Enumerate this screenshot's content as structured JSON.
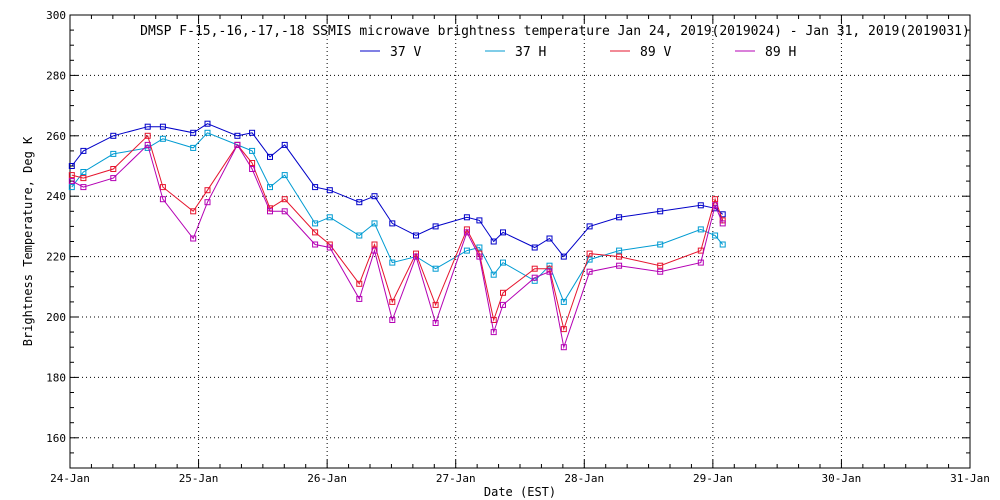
{
  "chart_data": {
    "type": "line",
    "title": "DMSP F-15,-16,-17,-18 SSMIS microwave brightness temperature Jan 24, 2019(2019024) - Jan 31, 2019(2019031)",
    "xlabel": "Date (EST)",
    "ylabel": "Brightness Temperature, Deg K",
    "x_ticks": [
      "24-Jan",
      "25-Jan",
      "26-Jan",
      "27-Jan",
      "28-Jan",
      "29-Jan",
      "30-Jan",
      "31-Jan"
    ],
    "y_ticks": [
      160,
      180,
      200,
      220,
      240,
      260,
      280,
      300
    ],
    "xlim": [
      "2019-01-24 00:00",
      "2019-01-31 00:00"
    ],
    "ylim": [
      150,
      300
    ],
    "grid": true,
    "legend_position": "top-center",
    "series": [
      {
        "name": "37 V",
        "color": "#0000c8",
        "x": [
          "2019-01-24 00:20",
          "2019-01-24 02:30",
          "2019-01-24 08:05",
          "2019-01-24 14:30",
          "2019-01-24 17:20",
          "2019-01-24 23:00",
          "2019-01-25 01:40",
          "2019-01-25 07:15",
          "2019-01-25 10:00",
          "2019-01-25 13:20",
          "2019-01-25 16:05",
          "2019-01-25 21:45",
          "2019-01-26 00:30",
          "2019-01-26 06:00",
          "2019-01-26 08:50",
          "2019-01-26 12:10",
          "2019-01-26 16:35",
          "2019-01-26 20:15",
          "2019-01-27 02:05",
          "2019-01-27 04:25",
          "2019-01-27 07:05",
          "2019-01-27 08:50",
          "2019-01-27 14:45",
          "2019-01-27 17:30",
          "2019-01-27 20:10",
          "2019-01-28 01:00",
          "2019-01-28 06:30",
          "2019-01-28 14:10",
          "2019-01-28 21:45",
          "2019-01-29 00:25",
          "2019-01-29 01:50"
        ],
        "values": [
          250,
          255,
          260,
          263,
          263,
          261,
          264,
          260,
          261,
          253,
          257,
          243,
          242,
          238,
          240,
          231,
          227,
          230,
          233,
          232,
          225,
          228,
          223,
          226,
          220,
          230,
          233,
          235,
          237,
          236,
          234
        ]
      },
      {
        "name": "37 H",
        "color": "#009bd2",
        "x": [
          "2019-01-24 00:20",
          "2019-01-24 02:30",
          "2019-01-24 08:05",
          "2019-01-24 14:30",
          "2019-01-24 17:20",
          "2019-01-24 23:00",
          "2019-01-25 01:40",
          "2019-01-25 07:15",
          "2019-01-25 10:00",
          "2019-01-25 13:20",
          "2019-01-25 16:05",
          "2019-01-25 21:45",
          "2019-01-26 00:30",
          "2019-01-26 06:00",
          "2019-01-26 08:50",
          "2019-01-26 12:10",
          "2019-01-26 16:35",
          "2019-01-26 20:15",
          "2019-01-27 02:05",
          "2019-01-27 04:25",
          "2019-01-27 07:05",
          "2019-01-27 08:50",
          "2019-01-27 14:45",
          "2019-01-27 17:30",
          "2019-01-27 20:10",
          "2019-01-28 01:00",
          "2019-01-28 06:30",
          "2019-01-28 14:10",
          "2019-01-28 21:45",
          "2019-01-29 00:25",
          "2019-01-29 01:50"
        ],
        "values": [
          243,
          248,
          254,
          256,
          259,
          256,
          261,
          257,
          255,
          243,
          247,
          231,
          233,
          227,
          231,
          218,
          220,
          216,
          222,
          223,
          214,
          218,
          212,
          217,
          205,
          219,
          222,
          224,
          229,
          227,
          224
        ]
      },
      {
        "name": "89 V",
        "color": "#e6142d",
        "x": [
          "2019-01-24 00:20",
          "2019-01-24 02:30",
          "2019-01-24 08:05",
          "2019-01-24 14:30",
          "2019-01-24 17:20",
          "2019-01-24 23:00",
          "2019-01-25 01:40",
          "2019-01-25 07:15",
          "2019-01-25 10:00",
          "2019-01-25 13:20",
          "2019-01-25 16:05",
          "2019-01-25 21:45",
          "2019-01-26 00:30",
          "2019-01-26 06:00",
          "2019-01-26 08:50",
          "2019-01-26 12:10",
          "2019-01-26 16:35",
          "2019-01-26 20:15",
          "2019-01-27 02:05",
          "2019-01-27 04:25",
          "2019-01-27 07:05",
          "2019-01-27 08:50",
          "2019-01-27 14:45",
          "2019-01-27 17:30",
          "2019-01-27 20:10",
          "2019-01-28 01:00",
          "2019-01-28 06:30",
          "2019-01-28 14:10",
          "2019-01-28 21:45",
          "2019-01-29 00:25",
          "2019-01-29 01:50"
        ],
        "values": [
          247,
          246,
          249,
          260,
          243,
          235,
          242,
          257,
          251,
          236,
          239,
          228,
          224,
          211,
          224,
          205,
          221,
          204,
          229,
          221,
          199,
          208,
          216,
          216,
          196,
          221,
          220,
          217,
          222,
          239,
          232
        ]
      },
      {
        "name": "89 H",
        "color": "#b400b4",
        "x": [
          "2019-01-24 00:20",
          "2019-01-24 02:30",
          "2019-01-24 08:05",
          "2019-01-24 14:30",
          "2019-01-24 17:20",
          "2019-01-24 23:00",
          "2019-01-25 01:40",
          "2019-01-25 07:15",
          "2019-01-25 10:00",
          "2019-01-25 13:20",
          "2019-01-25 16:05",
          "2019-01-25 21:45",
          "2019-01-26 00:30",
          "2019-01-26 06:00",
          "2019-01-26 08:50",
          "2019-01-26 12:10",
          "2019-01-26 16:35",
          "2019-01-26 20:15",
          "2019-01-27 02:05",
          "2019-01-27 04:25",
          "2019-01-27 07:05",
          "2019-01-27 08:50",
          "2019-01-27 14:45",
          "2019-01-27 17:30",
          "2019-01-27 20:10",
          "2019-01-28 01:00",
          "2019-01-28 06:30",
          "2019-01-28 14:10",
          "2019-01-28 21:45",
          "2019-01-29 00:25",
          "2019-01-29 01:50"
        ],
        "values": [
          245,
          243,
          246,
          257,
          239,
          226,
          238,
          257,
          249,
          235,
          235,
          224,
          223,
          206,
          222,
          199,
          220,
          198,
          228,
          220,
          195,
          204,
          213,
          215,
          190,
          215,
          217,
          215,
          218,
          237,
          231
        ]
      }
    ]
  }
}
